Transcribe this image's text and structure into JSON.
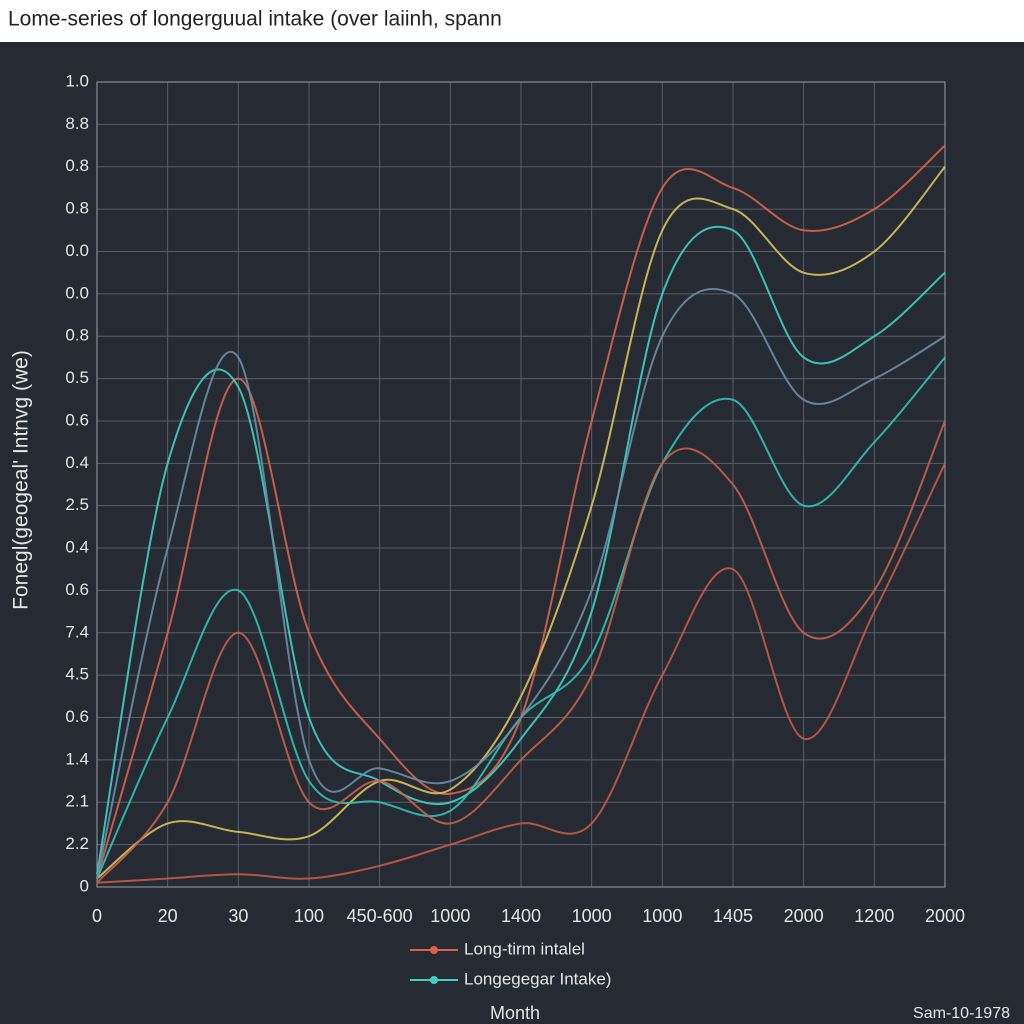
{
  "chart_data": {
    "type": "line",
    "title": "Lome-series of longerguual intake (over laiinh, spann",
    "y_label": "Fonegl(geogeal' Intnvg (we)",
    "x_label": "Month",
    "footnote": "Sam-10-1978",
    "categories": [
      "0",
      "20",
      "30",
      "100",
      "450-600",
      "1000",
      "1400",
      "1000",
      "1000",
      "1405",
      "2000",
      "1200",
      "2000"
    ],
    "ylim": [
      0,
      19
    ],
    "yticks": [
      0,
      {
        "value": 1,
        "label": "2.2"
      },
      {
        "value": 2,
        "label": "2.1"
      },
      {
        "value": 3,
        "label": "1.4"
      },
      {
        "value": 4,
        "label": "0.6"
      },
      {
        "value": 5,
        "label": "4.5"
      },
      {
        "value": 6,
        "label": "7.4"
      },
      {
        "value": 7,
        "label": "0.6"
      },
      {
        "value": 8,
        "label": "0.4"
      },
      {
        "value": 9,
        "label": "2.5"
      },
      {
        "value": 10,
        "label": "0.4"
      },
      {
        "value": 11,
        "label": "0.6"
      },
      {
        "value": 12,
        "label": "0.5"
      },
      {
        "value": 13,
        "label": "0.8"
      },
      {
        "value": 14,
        "label": "0.0"
      },
      {
        "value": 15,
        "label": "0.0"
      },
      {
        "value": 16,
        "label": "0.8"
      },
      {
        "value": 17,
        "label": "0.8"
      },
      {
        "value": 18,
        "label": "8.8"
      },
      {
        "value": 19,
        "label": "1.0"
      }
    ],
    "grid": true,
    "legend": "bottom",
    "series": [
      {
        "name": "Long-tirm intalel",
        "color": "#d8634a",
        "values": [
          0.2,
          6,
          12,
          6,
          3.5,
          2.2,
          4,
          11,
          16.5,
          16.5,
          15.5,
          16,
          17.5
        ]
      },
      {
        "name": "Longegegar Intake)",
        "color": "#3fd0c4",
        "values": [
          0.3,
          10,
          11.8,
          4,
          2.5,
          2,
          3.5,
          6.5,
          14,
          15.5,
          12.5,
          13,
          14.5
        ]
      },
      {
        "color": "#d9c25a",
        "values": [
          0.2,
          1.5,
          1.3,
          1.2,
          2.5,
          2.3,
          4.5,
          9,
          15.5,
          16,
          14.5,
          15,
          17
        ]
      },
      {
        "color": "#2fc2b6",
        "values": [
          0.2,
          4,
          7,
          2.5,
          2,
          1.8,
          4,
          5.5,
          10,
          11.5,
          9,
          10.5,
          12.5
        ]
      },
      {
        "color": "#c9604a",
        "values": [
          0.1,
          2,
          6,
          2,
          2.5,
          1.5,
          3,
          5,
          10,
          9.5,
          6,
          7,
          11
        ]
      },
      {
        "color": "#c55a44",
        "values": [
          0.1,
          0.2,
          0.3,
          0.2,
          0.5,
          1,
          1.5,
          1.5,
          5,
          7.5,
          3.5,
          6.5,
          10
        ]
      },
      {
        "color": "#6a8ea6",
        "values": [
          0.2,
          8,
          12.5,
          3,
          2.8,
          2.5,
          4,
          7,
          13,
          14,
          11.5,
          12,
          13
        ]
      }
    ]
  }
}
